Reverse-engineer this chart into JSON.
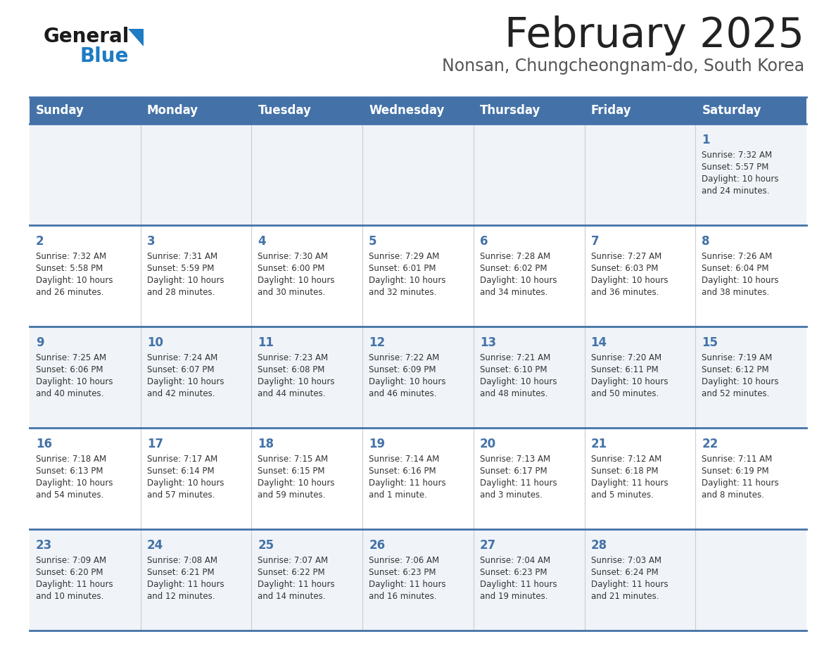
{
  "title": "February 2025",
  "subtitle": "Nonsan, Chungcheongnam-do, South Korea",
  "days_of_week": [
    "Sunday",
    "Monday",
    "Tuesday",
    "Wednesday",
    "Thursday",
    "Friday",
    "Saturday"
  ],
  "header_bg": "#4472a8",
  "header_text": "#ffffff",
  "row_bg_odd": "#f0f4f8",
  "row_bg_even": "#ffffff",
  "separator_color": "#4472a8",
  "day_number_color": "#4472a8",
  "cell_text_color": "#333333",
  "title_color": "#222222",
  "subtitle_color": "#555555",
  "calendar_data": [
    [
      {
        "day": null,
        "sunrise": null,
        "sunset": null,
        "daylight": null
      },
      {
        "day": null,
        "sunrise": null,
        "sunset": null,
        "daylight": null
      },
      {
        "day": null,
        "sunrise": null,
        "sunset": null,
        "daylight": null
      },
      {
        "day": null,
        "sunrise": null,
        "sunset": null,
        "daylight": null
      },
      {
        "day": null,
        "sunrise": null,
        "sunset": null,
        "daylight": null
      },
      {
        "day": null,
        "sunrise": null,
        "sunset": null,
        "daylight": null
      },
      {
        "day": 1,
        "sunrise": "7:32 AM",
        "sunset": "5:57 PM",
        "daylight": "10 hours\nand 24 minutes."
      }
    ],
    [
      {
        "day": 2,
        "sunrise": "7:32 AM",
        "sunset": "5:58 PM",
        "daylight": "10 hours\nand 26 minutes."
      },
      {
        "day": 3,
        "sunrise": "7:31 AM",
        "sunset": "5:59 PM",
        "daylight": "10 hours\nand 28 minutes."
      },
      {
        "day": 4,
        "sunrise": "7:30 AM",
        "sunset": "6:00 PM",
        "daylight": "10 hours\nand 30 minutes."
      },
      {
        "day": 5,
        "sunrise": "7:29 AM",
        "sunset": "6:01 PM",
        "daylight": "10 hours\nand 32 minutes."
      },
      {
        "day": 6,
        "sunrise": "7:28 AM",
        "sunset": "6:02 PM",
        "daylight": "10 hours\nand 34 minutes."
      },
      {
        "day": 7,
        "sunrise": "7:27 AM",
        "sunset": "6:03 PM",
        "daylight": "10 hours\nand 36 minutes."
      },
      {
        "day": 8,
        "sunrise": "7:26 AM",
        "sunset": "6:04 PM",
        "daylight": "10 hours\nand 38 minutes."
      }
    ],
    [
      {
        "day": 9,
        "sunrise": "7:25 AM",
        "sunset": "6:06 PM",
        "daylight": "10 hours\nand 40 minutes."
      },
      {
        "day": 10,
        "sunrise": "7:24 AM",
        "sunset": "6:07 PM",
        "daylight": "10 hours\nand 42 minutes."
      },
      {
        "day": 11,
        "sunrise": "7:23 AM",
        "sunset": "6:08 PM",
        "daylight": "10 hours\nand 44 minutes."
      },
      {
        "day": 12,
        "sunrise": "7:22 AM",
        "sunset": "6:09 PM",
        "daylight": "10 hours\nand 46 minutes."
      },
      {
        "day": 13,
        "sunrise": "7:21 AM",
        "sunset": "6:10 PM",
        "daylight": "10 hours\nand 48 minutes."
      },
      {
        "day": 14,
        "sunrise": "7:20 AM",
        "sunset": "6:11 PM",
        "daylight": "10 hours\nand 50 minutes."
      },
      {
        "day": 15,
        "sunrise": "7:19 AM",
        "sunset": "6:12 PM",
        "daylight": "10 hours\nand 52 minutes."
      }
    ],
    [
      {
        "day": 16,
        "sunrise": "7:18 AM",
        "sunset": "6:13 PM",
        "daylight": "10 hours\nand 54 minutes."
      },
      {
        "day": 17,
        "sunrise": "7:17 AM",
        "sunset": "6:14 PM",
        "daylight": "10 hours\nand 57 minutes."
      },
      {
        "day": 18,
        "sunrise": "7:15 AM",
        "sunset": "6:15 PM",
        "daylight": "10 hours\nand 59 minutes."
      },
      {
        "day": 19,
        "sunrise": "7:14 AM",
        "sunset": "6:16 PM",
        "daylight": "11 hours\nand 1 minute."
      },
      {
        "day": 20,
        "sunrise": "7:13 AM",
        "sunset": "6:17 PM",
        "daylight": "11 hours\nand 3 minutes."
      },
      {
        "day": 21,
        "sunrise": "7:12 AM",
        "sunset": "6:18 PM",
        "daylight": "11 hours\nand 5 minutes."
      },
      {
        "day": 22,
        "sunrise": "7:11 AM",
        "sunset": "6:19 PM",
        "daylight": "11 hours\nand 8 minutes."
      }
    ],
    [
      {
        "day": 23,
        "sunrise": "7:09 AM",
        "sunset": "6:20 PM",
        "daylight": "11 hours\nand 10 minutes."
      },
      {
        "day": 24,
        "sunrise": "7:08 AM",
        "sunset": "6:21 PM",
        "daylight": "11 hours\nand 12 minutes."
      },
      {
        "day": 25,
        "sunrise": "7:07 AM",
        "sunset": "6:22 PM",
        "daylight": "11 hours\nand 14 minutes."
      },
      {
        "day": 26,
        "sunrise": "7:06 AM",
        "sunset": "6:23 PM",
        "daylight": "11 hours\nand 16 minutes."
      },
      {
        "day": 27,
        "sunrise": "7:04 AM",
        "sunset": "6:23 PM",
        "daylight": "11 hours\nand 19 minutes."
      },
      {
        "day": 28,
        "sunrise": "7:03 AM",
        "sunset": "6:24 PM",
        "daylight": "11 hours\nand 21 minutes."
      },
      {
        "day": null,
        "sunrise": null,
        "sunset": null,
        "daylight": null
      }
    ]
  ]
}
